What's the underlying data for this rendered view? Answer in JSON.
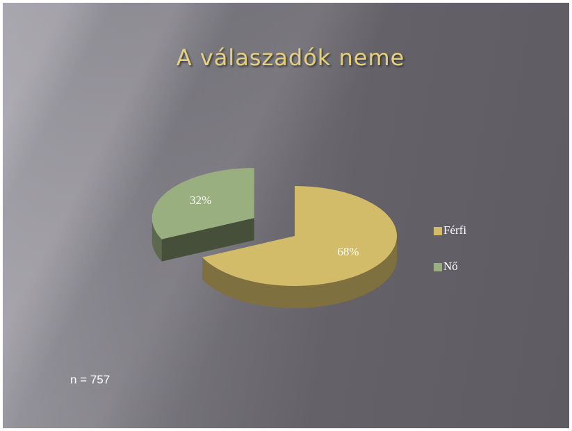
{
  "chart_data": {
    "type": "pie",
    "title": "A válaszadók neme",
    "categories": [
      "Férfi",
      "Nő"
    ],
    "values": [
      68,
      32
    ],
    "value_labels": [
      "68%",
      "32%"
    ],
    "colors": [
      "#d3bc69",
      "#9aaf80"
    ],
    "legend": "right",
    "annotation": "n = 757"
  }
}
